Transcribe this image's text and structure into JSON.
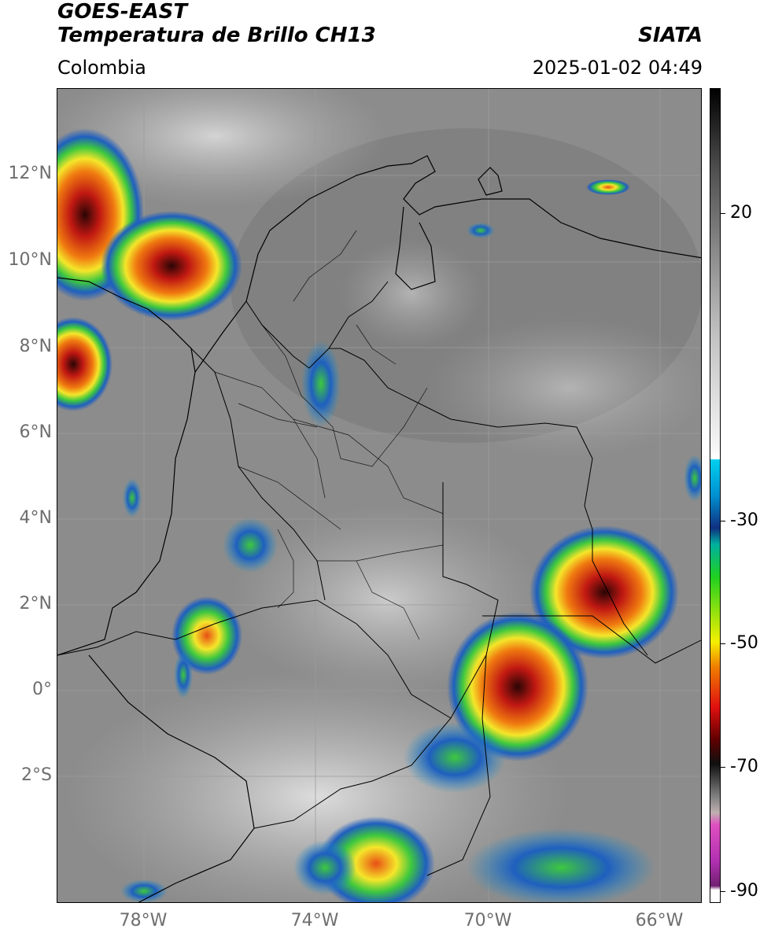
{
  "header": {
    "title_line1": "GOES-EAST",
    "title_line2": "Temperatura de Brillo CH13",
    "brand": "SIATA",
    "region": "Colombia",
    "timestamp": "2025-01-02 04:49"
  },
  "map": {
    "lat_ticks": [
      "12°N",
      "10°N",
      "8°N",
      "6°N",
      "4°N",
      "2°N",
      "0°",
      "2°S"
    ],
    "lon_ticks": [
      "78°W",
      "74°W",
      "70°W",
      "66°W"
    ]
  },
  "colorbar": {
    "labels": [
      "20",
      "-30",
      "-50",
      "-70",
      "-90"
    ]
  },
  "colors": {
    "cloud_gray": "#8a8a8a",
    "cold_blue": "#1f5fbf",
    "cold_green": "#3ec83e",
    "cold_yellow": "#f5e62a",
    "cold_red": "#d9201a",
    "cold_darkred": "#3a0a0a"
  }
}
